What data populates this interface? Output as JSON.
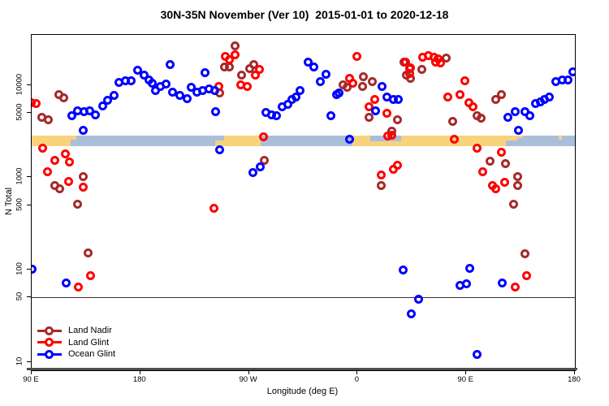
{
  "title": "30N-35N November (Ver 10)  2015-01-01 to 2020-12-18",
  "chart_data": {
    "type": "scatter",
    "title": "30N-35N November (Ver 10)  2015-01-01 to 2020-12-18",
    "xlabel": "Longitude (deg E)",
    "ylabel": "N Total",
    "x_axis": {
      "note": "continuous longitude, wraps 90E->180->90W->0->90E->180",
      "range_deg": [
        90,
        540
      ],
      "ticks": [
        {
          "deg": 90,
          "label": "90 E"
        },
        {
          "deg": 180,
          "label": "180"
        },
        {
          "deg": 270,
          "label": "90 W"
        },
        {
          "deg": 360,
          "label": "0"
        },
        {
          "deg": 450,
          "label": "90 E"
        },
        {
          "deg": 540,
          "label": "180"
        }
      ]
    },
    "y_axis": {
      "scale": "log",
      "tick_values": [
        10,
        50,
        100,
        500,
        1000,
        5000,
        10000
      ],
      "range": [
        8.2,
        34700
      ],
      "grid": false
    },
    "reference_line": {
      "value": 50,
      "color": "#333333"
    },
    "map_strip": {
      "description": "land/ocean world strip for the 30N-35N latitude band",
      "value_range": [
        2175,
        2830
      ],
      "land_color": "#F7D37E",
      "ocean_color": "#A9BFD9",
      "segments": [
        {
          "type": "land",
          "from_deg": 90,
          "to_deg": 122.5
        },
        {
          "type": "ocean",
          "from_deg": 122.5,
          "to_deg": 242
        },
        {
          "type": "land",
          "from_deg": 242,
          "to_deg": 280
        },
        {
          "type": "ocean",
          "from_deg": 280,
          "to_deg": 356
        },
        {
          "type": "land",
          "from_deg": 356,
          "to_deg": 483
        },
        {
          "type": "ocean",
          "from_deg": 483,
          "to_deg": 540
        }
      ],
      "coast_details": [
        {
          "type": "ocean",
          "from_deg": 370.5,
          "to_deg": 396,
          "edge": "top",
          "fraction": 0.55
        },
        {
          "type": "ocean",
          "from_deg": 242,
          "to_deg": 249.5,
          "edge": "top",
          "fraction": 0.5
        },
        {
          "type": "land",
          "from_deg": 122.5,
          "to_deg": 127,
          "edge": "top",
          "fraction": 0.4
        },
        {
          "type": "land",
          "from_deg": 483,
          "to_deg": 492,
          "edge": "top",
          "fraction": 0.5
        },
        {
          "type": "land",
          "from_deg": 492,
          "to_deg": 497,
          "edge": "top",
          "fraction": 0.25
        },
        {
          "type": "land",
          "from_deg": 526.5,
          "to_deg": 529,
          "edge": "top",
          "fraction": 0.35
        }
      ]
    },
    "legend_position": "bottom-left-inside",
    "series": [
      {
        "name": "Land Nadir",
        "color": "#A52A2A",
        "points": [
          [
            98.5,
            4430
          ],
          [
            103.5,
            4160
          ],
          [
            112.5,
            7800
          ],
          [
            116.5,
            7260
          ],
          [
            109,
            820
          ],
          [
            113.5,
            745
          ],
          [
            132.5,
            1010
          ],
          [
            128,
            515
          ],
          [
            137,
            151
          ],
          [
            258.5,
            26700
          ],
          [
            249.5,
            15500
          ],
          [
            254,
            15500
          ],
          [
            270.5,
            15000
          ],
          [
            274,
            16600
          ],
          [
            264,
            12900
          ],
          [
            246,
            8180
          ],
          [
            283,
            1540
          ],
          [
            348,
            10000
          ],
          [
            351.5,
            9350
          ],
          [
            365,
            12200
          ],
          [
            364,
            9700
          ],
          [
            372.5,
            10800
          ],
          [
            369.5,
            4470
          ],
          [
            393,
            4180
          ],
          [
            388.5,
            3170
          ],
          [
            379.5,
            820
          ],
          [
            398.5,
            17800
          ],
          [
            403,
            15000
          ],
          [
            400.5,
            12750
          ],
          [
            404,
            11900
          ],
          [
            413,
            14700
          ],
          [
            433.5,
            19600
          ],
          [
            439,
            4030
          ],
          [
            459,
            4620
          ],
          [
            462.5,
            4330
          ],
          [
            474.5,
            6900
          ],
          [
            479,
            7870
          ],
          [
            470,
            1510
          ],
          [
            482.5,
            1410
          ],
          [
            492.5,
            1010
          ],
          [
            492.5,
            820
          ],
          [
            489.5,
            515
          ],
          [
            498.5,
            148
          ]
        ]
      },
      {
        "name": "Land Glint",
        "color": "#FF0000",
        "points": [
          [
            89.5,
            6400
          ],
          [
            93.5,
            6300
          ],
          [
            99,
            2060
          ],
          [
            103,
            1160
          ],
          [
            109,
            1520
          ],
          [
            118,
            1800
          ],
          [
            121.5,
            1470
          ],
          [
            120.5,
            910
          ],
          [
            132.5,
            790
          ],
          [
            138.5,
            87
          ],
          [
            129,
            65
          ],
          [
            250.5,
            20300
          ],
          [
            258.5,
            21000
          ],
          [
            254,
            18900
          ],
          [
            245,
            9700
          ],
          [
            263,
            10000
          ],
          [
            268.5,
            9700
          ],
          [
            275,
            12750
          ],
          [
            278.5,
            14700
          ],
          [
            282,
            2730
          ],
          [
            241,
            460
          ],
          [
            353.5,
            11900
          ],
          [
            356,
            10400
          ],
          [
            359.5,
            20300
          ],
          [
            374,
            6900
          ],
          [
            369.5,
            5800
          ],
          [
            384,
            4900
          ],
          [
            385,
            2790
          ],
          [
            388.5,
            2850
          ],
          [
            393,
            1360
          ],
          [
            389.5,
            1230
          ],
          [
            379.5,
            1070
          ],
          [
            399.5,
            17500
          ],
          [
            404,
            15200
          ],
          [
            403,
            13300
          ],
          [
            414,
            20000
          ],
          [
            418.5,
            20700
          ],
          [
            423,
            20000
          ],
          [
            426.5,
            19200
          ],
          [
            424.5,
            17700
          ],
          [
            429,
            17300
          ],
          [
            449,
            11100
          ],
          [
            444.5,
            7870
          ],
          [
            434.5,
            7350
          ],
          [
            452.5,
            6430
          ],
          [
            455.5,
            5800
          ],
          [
            440,
            2600
          ],
          [
            459,
            2060
          ],
          [
            479,
            1870
          ],
          [
            463.5,
            1160
          ],
          [
            471.5,
            820
          ],
          [
            474.5,
            745
          ],
          [
            481.5,
            880
          ],
          [
            490.5,
            65
          ],
          [
            500,
            87
          ]
        ]
      },
      {
        "name": "Ocean Glint",
        "color": "#0000FF",
        "points": [
          [
            123.5,
            4620
          ],
          [
            128,
            5210
          ],
          [
            133.5,
            5100
          ],
          [
            138,
            5210
          ],
          [
            142.5,
            4720
          ],
          [
            132.5,
            3200
          ],
          [
            149,
            5980
          ],
          [
            153,
            6770
          ],
          [
            158,
            7660
          ],
          [
            162.5,
            10600
          ],
          [
            168,
            11000
          ],
          [
            172.5,
            11000
          ],
          [
            178,
            14300
          ],
          [
            183,
            12750
          ],
          [
            187,
            11300
          ],
          [
            190,
            10400
          ],
          [
            192.5,
            8730
          ],
          [
            196.5,
            9700
          ],
          [
            201,
            10150
          ],
          [
            204.5,
            16600
          ],
          [
            207,
            8400
          ],
          [
            212.5,
            7660
          ],
          [
            219,
            7140
          ],
          [
            222.5,
            9370
          ],
          [
            227,
            8400
          ],
          [
            231.5,
            8730
          ],
          [
            233.5,
            13700
          ],
          [
            237,
            9060
          ],
          [
            241.5,
            8730
          ],
          [
            242.5,
            5100
          ],
          [
            246,
            1990
          ],
          [
            279.5,
            1290
          ],
          [
            273,
            1130
          ],
          [
            284,
            5000
          ],
          [
            288.5,
            4770
          ],
          [
            293,
            4620
          ],
          [
            297.5,
            5800
          ],
          [
            302,
            6220
          ],
          [
            305.5,
            6900
          ],
          [
            309,
            7350
          ],
          [
            312,
            8730
          ],
          [
            319,
            17700
          ],
          [
            323.5,
            15500
          ],
          [
            333.5,
            13000
          ],
          [
            329,
            10800
          ],
          [
            344.5,
            8180
          ],
          [
            342.5,
            7870
          ],
          [
            338,
            4670
          ],
          [
            353.5,
            2590
          ],
          [
            380.5,
            9700
          ],
          [
            384,
            7350
          ],
          [
            389.5,
            6960
          ],
          [
            394,
            6960
          ],
          [
            375,
            5210
          ],
          [
            397.5,
            100
          ],
          [
            410.5,
            48
          ],
          [
            404.5,
            33
          ],
          [
            484.5,
            4470
          ],
          [
            490.5,
            5100
          ],
          [
            493.5,
            3230
          ],
          [
            498.5,
            5100
          ],
          [
            502.5,
            4670
          ],
          [
            507.5,
            6270
          ],
          [
            511.5,
            6600
          ],
          [
            515,
            6900
          ],
          [
            518.5,
            7400
          ],
          [
            524,
            10900
          ],
          [
            529.5,
            11200
          ],
          [
            534,
            11200
          ],
          [
            538,
            13800
          ],
          [
            90.5,
            102
          ],
          [
            118.5,
            72
          ],
          [
            453,
            104
          ],
          [
            445,
            68
          ],
          [
            450.5,
            70
          ],
          [
            480,
            72
          ],
          [
            459,
            12
          ]
        ]
      }
    ]
  }
}
